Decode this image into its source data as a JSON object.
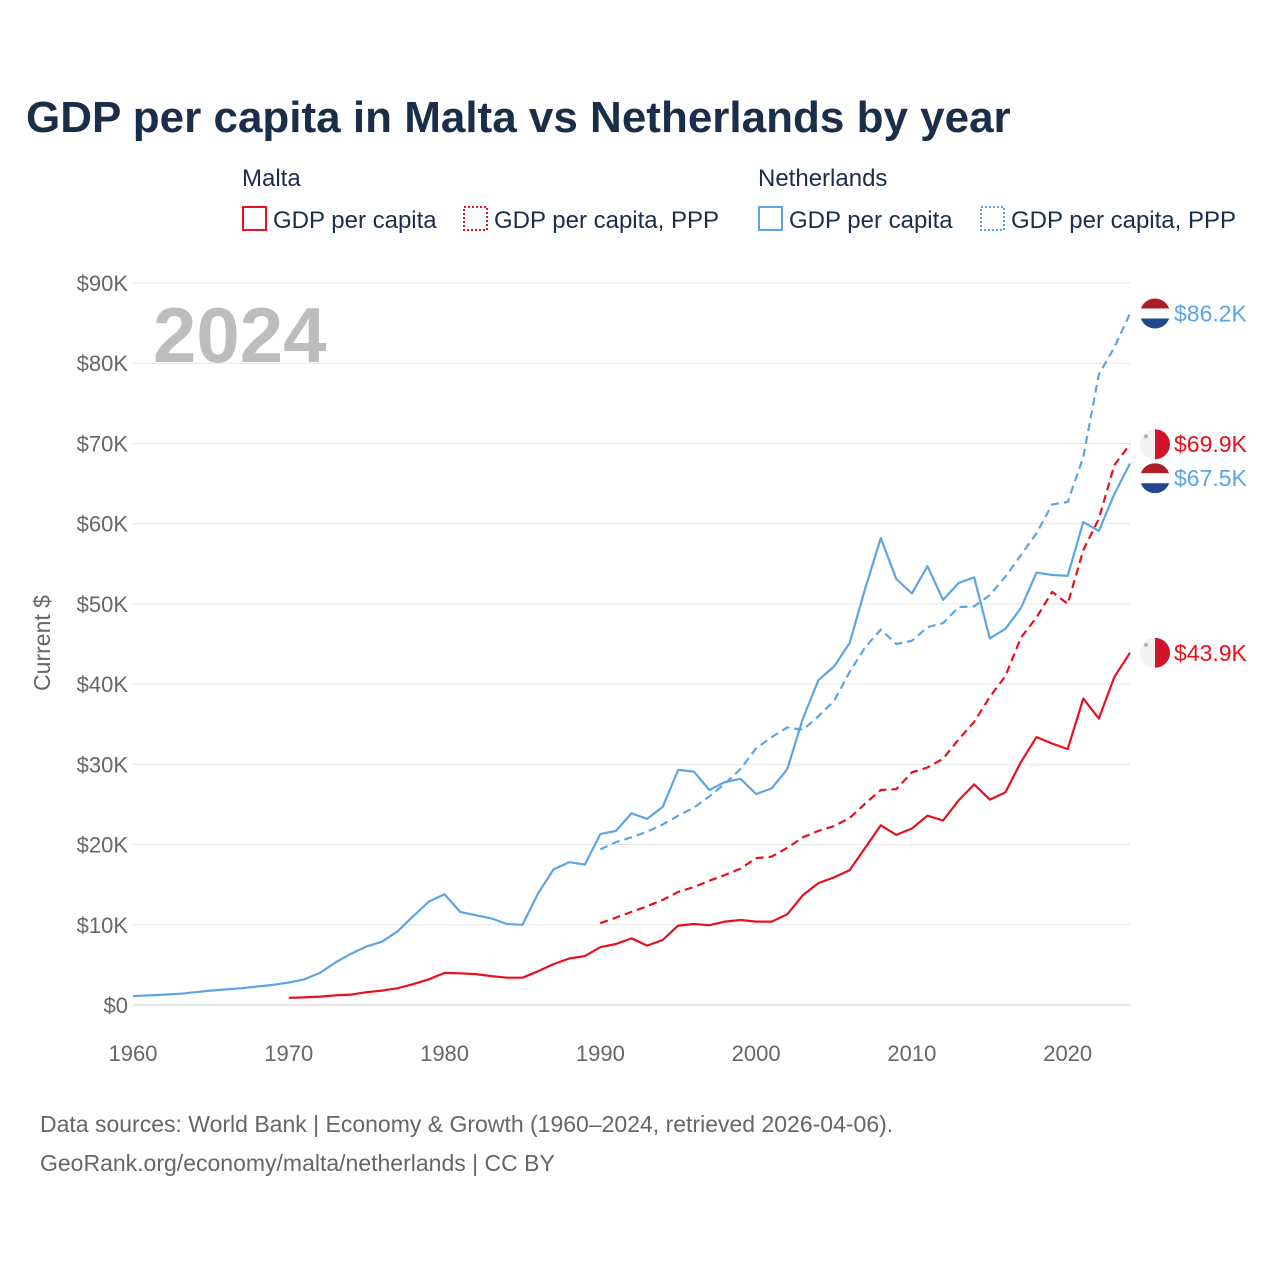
{
  "chart_data": {
    "type": "line",
    "title": "GDP per capita in Malta vs Netherlands by year",
    "ylabel": "Current $",
    "xlabel": "",
    "xlim": [
      1960,
      2024
    ],
    "ylim": [
      0,
      90000
    ],
    "x_ticks": [
      1960,
      1970,
      1980,
      1990,
      2000,
      2010,
      2020
    ],
    "y_ticks": [
      {
        "value": 0,
        "label": "$0"
      },
      {
        "value": 10000,
        "label": "$10K"
      },
      {
        "value": 20000,
        "label": "$20K"
      },
      {
        "value": 30000,
        "label": "$30K"
      },
      {
        "value": 40000,
        "label": "$40K"
      },
      {
        "value": 50000,
        "label": "$50K"
      },
      {
        "value": 60000,
        "label": "$60K"
      },
      {
        "value": 70000,
        "label": "$70K"
      },
      {
        "value": 80000,
        "label": "$80K"
      },
      {
        "value": 90000,
        "label": "$90K"
      }
    ],
    "year_marker": "2024",
    "grid": true,
    "legend": {
      "groups": [
        {
          "name": "Malta",
          "entries": [
            "GDP per capita",
            "GDP per capita, PPP"
          ]
        },
        {
          "name": "Netherlands",
          "entries": [
            "GDP per capita",
            "GDP per capita, PPP"
          ]
        }
      ],
      "placement": "top"
    },
    "series": [
      {
        "name": "Malta GDP per capita",
        "country": "Malta",
        "color": "#e8101e",
        "style": "solid",
        "end_label": "$43.9K",
        "x": [
          1970,
          1971,
          1972,
          1973,
          1974,
          1975,
          1976,
          1977,
          1978,
          1979,
          1980,
          1981,
          1982,
          1983,
          1984,
          1985,
          1986,
          1987,
          1988,
          1989,
          1990,
          1991,
          1992,
          1993,
          1994,
          1995,
          1996,
          1997,
          1998,
          1999,
          2000,
          2001,
          2002,
          2003,
          2004,
          2005,
          2006,
          2007,
          2008,
          2009,
          2010,
          2011,
          2012,
          2013,
          2014,
          2015,
          2016,
          2017,
          2018,
          2019,
          2020,
          2021,
          2022,
          2023,
          2024
        ],
        "values": [
          900,
          950,
          1050,
          1200,
          1300,
          1600,
          1800,
          2100,
          2600,
          3200,
          4000,
          3950,
          3850,
          3600,
          3400,
          3400,
          4200,
          5100,
          5800,
          6100,
          7200,
          7600,
          8300,
          7400,
          8100,
          9900,
          10100,
          9950,
          10400,
          10600,
          10400,
          10400,
          11300,
          13700,
          15200,
          15900,
          16800,
          19600,
          22400,
          21200,
          22000,
          23600,
          23000,
          25500,
          27500,
          25600,
          26500,
          30300,
          33400,
          32600,
          31900,
          38200,
          35700,
          40900,
          43900
        ]
      },
      {
        "name": "Malta GDP per capita, PPP",
        "country": "Malta",
        "color": "#e8101e",
        "style": "dashed",
        "end_label": "$69.9K",
        "x": [
          1990,
          1991,
          1992,
          1993,
          1994,
          1995,
          1996,
          1997,
          1998,
          1999,
          2000,
          2001,
          2002,
          2003,
          2004,
          2005,
          2006,
          2007,
          2008,
          2009,
          2010,
          2011,
          2012,
          2013,
          2014,
          2015,
          2016,
          2017,
          2018,
          2019,
          2020,
          2021,
          2022,
          2023,
          2024
        ],
        "values": [
          10200,
          10900,
          11600,
          12300,
          13100,
          14100,
          14700,
          15500,
          16200,
          17000,
          18300,
          18500,
          19600,
          20900,
          21700,
          22300,
          23300,
          25100,
          26800,
          26900,
          29000,
          29600,
          30700,
          33100,
          35300,
          38400,
          41000,
          45800,
          48300,
          51500,
          50000,
          56700,
          60600,
          67300,
          69900
        ]
      },
      {
        "name": "Netherlands GDP per capita",
        "country": "Netherlands",
        "color": "#5ca5e5",
        "style": "solid",
        "end_label": "$67.5K",
        "x": [
          1960,
          1961,
          1962,
          1963,
          1964,
          1965,
          1966,
          1967,
          1968,
          1969,
          1970,
          1971,
          1972,
          1973,
          1974,
          1975,
          1976,
          1977,
          1978,
          1979,
          1980,
          1981,
          1982,
          1983,
          1984,
          1985,
          1986,
          1987,
          1988,
          1989,
          1990,
          1991,
          1992,
          1993,
          1994,
          1995,
          1996,
          1997,
          1998,
          1999,
          2000,
          2001,
          2002,
          2003,
          2004,
          2005,
          2006,
          2007,
          2008,
          2009,
          2010,
          2011,
          2012,
          2013,
          2014,
          2015,
          2016,
          2017,
          2018,
          2019,
          2020,
          2021,
          2022,
          2023,
          2024
        ],
        "values": [
          1100,
          1200,
          1300,
          1400,
          1600,
          1800,
          1950,
          2100,
          2300,
          2500,
          2800,
          3200,
          4000,
          5300,
          6400,
          7300,
          7900,
          9200,
          11100,
          12900,
          13800,
          11600,
          11200,
          10800,
          10100,
          10000,
          13900,
          16900,
          17800,
          17500,
          21300,
          21700,
          23900,
          23200,
          24700,
          29300,
          29100,
          26800,
          27800,
          28200,
          26300,
          27000,
          29400,
          35700,
          40500,
          42200,
          45100,
          51900,
          58200,
          53100,
          51300,
          54700,
          50500,
          52600,
          53300,
          45700,
          46900,
          49500,
          53900,
          53600,
          53500,
          60200,
          59100,
          63700,
          67500
        ]
      },
      {
        "name": "Netherlands GDP per capita, PPP",
        "country": "Netherlands",
        "color": "#5ca5e5",
        "style": "dashed",
        "end_label": "$86.2K",
        "x": [
          1990,
          1991,
          1992,
          1993,
          1994,
          1995,
          1996,
          1997,
          1998,
          1999,
          2000,
          2001,
          2002,
          2003,
          2004,
          2005,
          2006,
          2007,
          2008,
          2009,
          2010,
          2011,
          2012,
          2013,
          2014,
          2015,
          2016,
          2017,
          2018,
          2019,
          2020,
          2021,
          2022,
          2023,
          2024
        ],
        "values": [
          19400,
          20300,
          20900,
          21600,
          22500,
          23600,
          24600,
          26000,
          27600,
          29400,
          32000,
          33400,
          34600,
          34300,
          36000,
          37900,
          41500,
          44600,
          46800,
          45000,
          45400,
          47100,
          47600,
          49600,
          49700,
          51100,
          53400,
          56100,
          58800,
          62400,
          62700,
          68300,
          78600,
          82000,
          86200
        ]
      }
    ]
  },
  "footer": {
    "source_line": "Data sources: World Bank | Economy & Growth (1960–2024, retrieved 2026-04-06).",
    "url_line": "GeoRank.org/economy/malta/netherlands | CC BY"
  }
}
